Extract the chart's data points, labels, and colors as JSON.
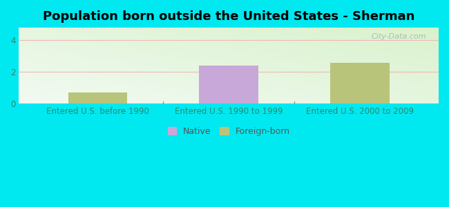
{
  "title": "Population born outside the United States - Sherman",
  "groups": [
    "Entered U.S. before 1990",
    "Entered U.S. 1990 to 1999",
    "Entered U.S. 2000 to 2009"
  ],
  "bar_values": [
    0.7,
    2.4,
    2.6
  ],
  "bar_colors": [
    "#b8c47a",
    "#c8a8d8",
    "#b8c47a"
  ],
  "bar_types": [
    "foreign",
    "native",
    "foreign"
  ],
  "native_color": "#c8a8d8",
  "foreign_color": "#b8c47a",
  "ylim": [
    0,
    4.8
  ],
  "yticks": [
    0,
    2,
    4
  ],
  "bar_width": 0.45,
  "bg_color": "#00e8f0",
  "grid_color": "#f0b8b8",
  "title_fontsize": 13,
  "tick_fontsize": 8.5,
  "legend_native_label": "Native",
  "legend_foreign_label": "Foreign-born",
  "watermark": "City-Data.com",
  "xlabel_color": "#2a8a6a",
  "ylabel_color": "#2a8a6a"
}
